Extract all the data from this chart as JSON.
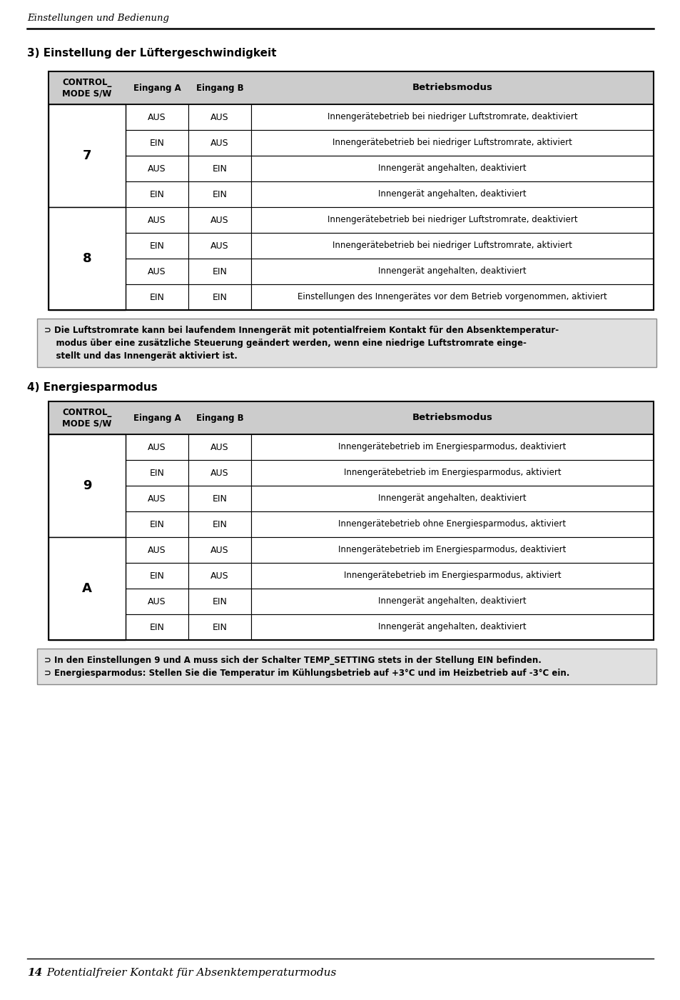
{
  "page_header": "Einstellungen und Bedienung",
  "section3_title": "3) Einstellung der Lüftergeschwindigkeit",
  "section4_title": "4) Energiesparmodus",
  "table1_rows": [
    [
      "7",
      "AUS",
      "AUS",
      "Innengerätebetrieb bei niedriger Luftstromrate, deaktiviert"
    ],
    [
      "7",
      "EIN",
      "AUS",
      "Innengerätebetrieb bei niedriger Luftstromrate, aktiviert"
    ],
    [
      "7",
      "AUS",
      "EIN",
      "Innengerät angehalten, deaktiviert"
    ],
    [
      "7",
      "EIN",
      "EIN",
      "Innengerät angehalten, deaktiviert"
    ],
    [
      "8",
      "AUS",
      "AUS",
      "Innengerätebetrieb bei niedriger Luftstromrate, deaktiviert"
    ],
    [
      "8",
      "EIN",
      "AUS",
      "Innengerätebetrieb bei niedriger Luftstromrate, aktiviert"
    ],
    [
      "8",
      "AUS",
      "EIN",
      "Innengerät angehalten, deaktiviert"
    ],
    [
      "8",
      "EIN",
      "EIN",
      "Einstellungen des Innengerätes vor dem Betrieb vorgenommen, aktiviert"
    ]
  ],
  "note1_line1": "⊃ Die Luftstromrate kann bei laufendem Innengerät mit potentialfreiem Kontakt für den Absenktemperatur-",
  "note1_line2": "    modus über eine zusätzliche Steuerung geändert werden, wenn eine niedrige Luftstromrate einge-",
  "note1_line3": "    stellt und das Innengerät aktiviert ist.",
  "table2_rows": [
    [
      "9",
      "AUS",
      "AUS",
      "Innengerätebetrieb im Energiesparmodus, deaktiviert"
    ],
    [
      "9",
      "EIN",
      "AUS",
      "Innengerätebetrieb im Energiesparmodus, aktiviert"
    ],
    [
      "9",
      "AUS",
      "EIN",
      "Innengerät angehalten, deaktiviert"
    ],
    [
      "9",
      "EIN",
      "EIN",
      "Innengerätebetrieb ohne Energiesparmodus, aktiviert"
    ],
    [
      "A",
      "AUS",
      "AUS",
      "Innengerätebetrieb im Energiesparmodus, deaktiviert"
    ],
    [
      "A",
      "EIN",
      "AUS",
      "Innengerätebetrieb im Energiesparmodus, aktiviert"
    ],
    [
      "A",
      "AUS",
      "EIN",
      "Innengerät angehalten, deaktiviert"
    ],
    [
      "A",
      "EIN",
      "EIN",
      "Innengerät angehalten, deaktiviert"
    ]
  ],
  "note2_line1": "⊃ In den Einstellungen 9 und A muss sich der Schalter TEMP_SETTING stets in der Stellung EIN befinden.",
  "note2_line2": "⊃ Energiesparmodus: Stellen Sie die Temperatur im Kühlungsbetrieb auf +3°C und im Heizbetrieb auf -3°C ein.",
  "footer_num": "14",
  "footer_text": "  Potentialfreier Kontakt für Absenktemperaturmodus",
  "bg_color": "#ffffff",
  "note_bg": "#e0e0e0",
  "header_bg": "#cccccc",
  "border_color": "#000000"
}
